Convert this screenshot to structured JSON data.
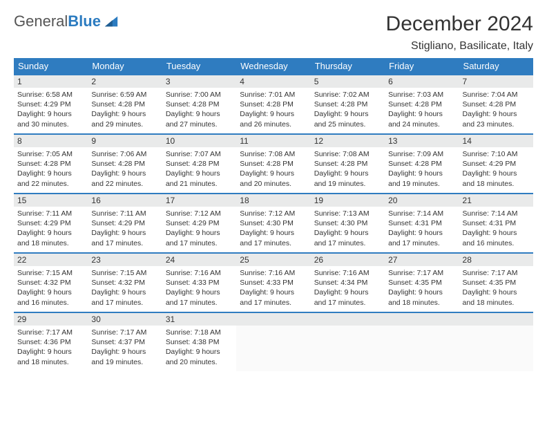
{
  "logo": {
    "word1": "General",
    "word2": "Blue"
  },
  "title": "December 2024",
  "location": "Stigliano, Basilicate, Italy",
  "colors": {
    "header_bg": "#2f7cc0",
    "header_fg": "#ffffff",
    "band_bg": "#e9eaea",
    "band_border": "#2f7cc0",
    "page_bg": "#ffffff",
    "text": "#333333",
    "logo_blue": "#2b7bc0"
  },
  "fonts": {
    "title_size": 30,
    "subtitle_size": 16,
    "th_size": 13,
    "daynum_size": 12,
    "body_size": 10.5
  },
  "day_headers": [
    "Sunday",
    "Monday",
    "Tuesday",
    "Wednesday",
    "Thursday",
    "Friday",
    "Saturday"
  ],
  "labels": {
    "sunrise": "Sunrise: ",
    "sunset": "Sunset: ",
    "daylight": "Daylight: "
  },
  "days": [
    {
      "n": 1,
      "sr": "6:58 AM",
      "ss": "4:29 PM",
      "dl": "9 hours and 30 minutes."
    },
    {
      "n": 2,
      "sr": "6:59 AM",
      "ss": "4:28 PM",
      "dl": "9 hours and 29 minutes."
    },
    {
      "n": 3,
      "sr": "7:00 AM",
      "ss": "4:28 PM",
      "dl": "9 hours and 27 minutes."
    },
    {
      "n": 4,
      "sr": "7:01 AM",
      "ss": "4:28 PM",
      "dl": "9 hours and 26 minutes."
    },
    {
      "n": 5,
      "sr": "7:02 AM",
      "ss": "4:28 PM",
      "dl": "9 hours and 25 minutes."
    },
    {
      "n": 6,
      "sr": "7:03 AM",
      "ss": "4:28 PM",
      "dl": "9 hours and 24 minutes."
    },
    {
      "n": 7,
      "sr": "7:04 AM",
      "ss": "4:28 PM",
      "dl": "9 hours and 23 minutes."
    },
    {
      "n": 8,
      "sr": "7:05 AM",
      "ss": "4:28 PM",
      "dl": "9 hours and 22 minutes."
    },
    {
      "n": 9,
      "sr": "7:06 AM",
      "ss": "4:28 PM",
      "dl": "9 hours and 22 minutes."
    },
    {
      "n": 10,
      "sr": "7:07 AM",
      "ss": "4:28 PM",
      "dl": "9 hours and 21 minutes."
    },
    {
      "n": 11,
      "sr": "7:08 AM",
      "ss": "4:28 PM",
      "dl": "9 hours and 20 minutes."
    },
    {
      "n": 12,
      "sr": "7:08 AM",
      "ss": "4:28 PM",
      "dl": "9 hours and 19 minutes."
    },
    {
      "n": 13,
      "sr": "7:09 AM",
      "ss": "4:28 PM",
      "dl": "9 hours and 19 minutes."
    },
    {
      "n": 14,
      "sr": "7:10 AM",
      "ss": "4:29 PM",
      "dl": "9 hours and 18 minutes."
    },
    {
      "n": 15,
      "sr": "7:11 AM",
      "ss": "4:29 PM",
      "dl": "9 hours and 18 minutes."
    },
    {
      "n": 16,
      "sr": "7:11 AM",
      "ss": "4:29 PM",
      "dl": "9 hours and 17 minutes."
    },
    {
      "n": 17,
      "sr": "7:12 AM",
      "ss": "4:29 PM",
      "dl": "9 hours and 17 minutes."
    },
    {
      "n": 18,
      "sr": "7:12 AM",
      "ss": "4:30 PM",
      "dl": "9 hours and 17 minutes."
    },
    {
      "n": 19,
      "sr": "7:13 AM",
      "ss": "4:30 PM",
      "dl": "9 hours and 17 minutes."
    },
    {
      "n": 20,
      "sr": "7:14 AM",
      "ss": "4:31 PM",
      "dl": "9 hours and 17 minutes."
    },
    {
      "n": 21,
      "sr": "7:14 AM",
      "ss": "4:31 PM",
      "dl": "9 hours and 16 minutes."
    },
    {
      "n": 22,
      "sr": "7:15 AM",
      "ss": "4:32 PM",
      "dl": "9 hours and 16 minutes."
    },
    {
      "n": 23,
      "sr": "7:15 AM",
      "ss": "4:32 PM",
      "dl": "9 hours and 17 minutes."
    },
    {
      "n": 24,
      "sr": "7:16 AM",
      "ss": "4:33 PM",
      "dl": "9 hours and 17 minutes."
    },
    {
      "n": 25,
      "sr": "7:16 AM",
      "ss": "4:33 PM",
      "dl": "9 hours and 17 minutes."
    },
    {
      "n": 26,
      "sr": "7:16 AM",
      "ss": "4:34 PM",
      "dl": "9 hours and 17 minutes."
    },
    {
      "n": 27,
      "sr": "7:17 AM",
      "ss": "4:35 PM",
      "dl": "9 hours and 18 minutes."
    },
    {
      "n": 28,
      "sr": "7:17 AM",
      "ss": "4:35 PM",
      "dl": "9 hours and 18 minutes."
    },
    {
      "n": 29,
      "sr": "7:17 AM",
      "ss": "4:36 PM",
      "dl": "9 hours and 18 minutes."
    },
    {
      "n": 30,
      "sr": "7:17 AM",
      "ss": "4:37 PM",
      "dl": "9 hours and 19 minutes."
    },
    {
      "n": 31,
      "sr": "7:18 AM",
      "ss": "4:38 PM",
      "dl": "9 hours and 20 minutes."
    }
  ],
  "grid": {
    "cols": 7,
    "rows": 5,
    "start_offset": 0
  }
}
